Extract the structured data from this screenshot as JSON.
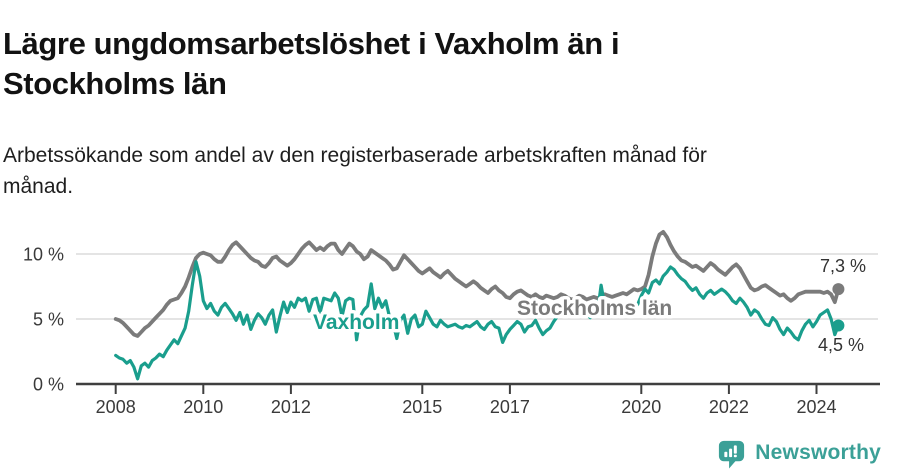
{
  "header": {
    "title_line1": "Lägre ungdomsarbetslöshet i Vaxholm än i",
    "title_line2": "Stockholms län",
    "subtitle_line1": "Arbetssökande som andel av den registerbaserade arbetskraften månad för",
    "subtitle_line2": "månad."
  },
  "footer": {
    "brand": "Newsworthy",
    "logo_icon": "speech-bubble-bar-chart-icon"
  },
  "colors": {
    "vaxholm": "#1a9e8d",
    "stockholms_lan": "#7b7b7b",
    "brand_teal": "#3ba097",
    "title_text": "#121212",
    "axis_text": "#3a3a3a",
    "end_label_text": "#333333",
    "grid": "#dcdcdc",
    "axis_line": "#3f3f3f",
    "background": "#ffffff"
  },
  "chart_data": {
    "type": "line",
    "title": "Lägre ungdomsarbetslöshet i Vaxholm än i Stockholms län",
    "subtitle": "Arbetssökande som andel av den registerbaserade arbetskraften månad för månad.",
    "x_unit": "month",
    "x_start": "2008-01",
    "x_end": "2024-07",
    "grid": "horizontal",
    "legend": "inline-labels",
    "ylim": [
      0,
      12.5
    ],
    "y_ticks": [
      {
        "value": 0,
        "label": "0 %"
      },
      {
        "value": 5,
        "label": "5 %"
      },
      {
        "value": 10,
        "label": "10 %"
      }
    ],
    "x_ticks": [
      {
        "year": 2008,
        "label": "2008"
      },
      {
        "year": 2010,
        "label": "2010"
      },
      {
        "year": 2012,
        "label": "2012"
      },
      {
        "year": 2015,
        "label": "2015"
      },
      {
        "year": 2017,
        "label": "2017"
      },
      {
        "year": 2020,
        "label": "2020"
      },
      {
        "year": 2022,
        "label": "2022"
      },
      {
        "year": 2024,
        "label": "2024"
      }
    ],
    "series": [
      {
        "name": "Stockholms län",
        "slug": "stockholms-lan",
        "color_key": "stockholms_lan",
        "end_label": "7,3 %",
        "end_value": 7.3,
        "values": [
          5.0,
          4.9,
          4.7,
          4.4,
          4.1,
          3.8,
          3.7,
          4.0,
          4.3,
          4.5,
          4.8,
          5.1,
          5.4,
          5.7,
          6.1,
          6.4,
          6.5,
          6.6,
          7.0,
          7.5,
          8.2,
          9.0,
          9.7,
          10.0,
          10.1,
          10.0,
          9.9,
          9.6,
          9.4,
          9.4,
          9.8,
          10.3,
          10.7,
          10.9,
          10.6,
          10.3,
          10.0,
          9.7,
          9.5,
          9.4,
          9.1,
          9.0,
          9.3,
          9.7,
          9.8,
          9.5,
          9.3,
          9.1,
          9.3,
          9.6,
          10.0,
          10.4,
          10.7,
          10.9,
          10.6,
          10.3,
          10.5,
          10.3,
          10.6,
          10.8,
          10.8,
          10.3,
          10.0,
          10.4,
          10.8,
          10.6,
          10.2,
          10.0,
          9.6,
          9.8,
          10.3,
          10.1,
          9.9,
          9.7,
          9.5,
          9.2,
          8.8,
          8.9,
          9.4,
          9.9,
          9.6,
          9.3,
          9.0,
          8.7,
          8.5,
          8.7,
          8.9,
          8.6,
          8.4,
          8.2,
          8.5,
          8.7,
          8.4,
          8.1,
          7.9,
          7.7,
          7.5,
          7.7,
          7.9,
          7.7,
          7.4,
          7.2,
          7.0,
          7.3,
          7.5,
          7.2,
          7.0,
          6.7,
          6.6,
          6.9,
          7.1,
          7.2,
          7.0,
          6.8,
          6.7,
          6.9,
          6.7,
          6.6,
          6.8,
          6.7,
          6.6,
          6.7,
          6.9,
          6.8,
          6.6,
          6.5,
          6.6,
          6.8,
          6.7,
          6.5,
          6.6,
          6.7,
          6.6,
          6.7,
          6.9,
          6.8,
          6.7,
          6.8,
          6.9,
          7.0,
          6.9,
          7.1,
          7.3,
          7.2,
          7.3,
          7.5,
          8.4,
          9.8,
          10.8,
          11.5,
          11.7,
          11.3,
          10.7,
          10.2,
          9.8,
          9.5,
          9.4,
          9.2,
          9.0,
          9.1,
          8.9,
          8.7,
          9.0,
          9.3,
          9.1,
          8.8,
          8.6,
          8.4,
          8.7,
          9.0,
          9.2,
          8.9,
          8.4,
          7.9,
          7.4,
          7.2,
          7.3,
          7.5,
          7.6,
          7.4,
          7.2,
          7.0,
          6.8,
          6.9,
          6.6,
          6.4,
          6.6,
          6.9,
          7.0,
          7.1,
          7.1,
          7.1,
          7.1,
          7.1,
          7.0,
          7.1,
          6.9,
          6.3,
          7.3
        ]
      },
      {
        "name": "Vaxholm",
        "slug": "vaxholm",
        "color_key": "vaxholm",
        "end_label": "4,5 %",
        "end_value": 4.5,
        "values": [
          2.2,
          2.0,
          1.9,
          1.6,
          1.8,
          1.3,
          0.4,
          1.4,
          1.6,
          1.3,
          1.8,
          2.0,
          2.3,
          2.1,
          2.6,
          3.0,
          3.4,
          3.1,
          3.7,
          4.3,
          5.6,
          7.6,
          9.4,
          8.3,
          6.4,
          5.8,
          6.2,
          5.6,
          5.3,
          5.9,
          6.2,
          5.8,
          5.4,
          4.9,
          5.5,
          4.6,
          5.3,
          4.2,
          4.9,
          5.4,
          5.1,
          4.6,
          5.3,
          5.7,
          4.0,
          5.2,
          6.3,
          5.5,
          6.3,
          5.9,
          6.6,
          6.4,
          6.6,
          5.6,
          6.5,
          6.6,
          5.5,
          6.6,
          6.5,
          6.4,
          7.0,
          6.6,
          5.2,
          6.4,
          6.6,
          6.5,
          3.4,
          5.2,
          5.7,
          6.0,
          7.7,
          5.8,
          6.6,
          5.9,
          6.4,
          5.2,
          4.7,
          3.5,
          4.9,
          5.3,
          3.9,
          5.0,
          5.3,
          4.4,
          4.6,
          5.6,
          5.1,
          4.6,
          4.4,
          4.9,
          4.6,
          4.4,
          4.5,
          4.6,
          4.4,
          4.3,
          4.5,
          4.4,
          4.6,
          4.8,
          4.4,
          4.2,
          4.6,
          4.8,
          4.4,
          4.3,
          3.2,
          3.8,
          4.2,
          4.5,
          4.8,
          4.6,
          4.0,
          4.4,
          4.5,
          4.9,
          4.3,
          3.8,
          4.1,
          4.3,
          4.8,
          5.2,
          5.6,
          5.4,
          5.6,
          5.5,
          5.3,
          5.5,
          5.2,
          5.4,
          5.1,
          5.3,
          5.5,
          7.6,
          6.0,
          5.4,
          5.6,
          5.3,
          5.5,
          5.7,
          5.4,
          5.6,
          5.8,
          6.1,
          6.8,
          7.3,
          7.0,
          7.8,
          8.0,
          7.7,
          8.3,
          8.6,
          9.0,
          8.8,
          8.4,
          8.1,
          7.9,
          7.5,
          7.2,
          7.4,
          6.9,
          6.6,
          7.0,
          7.2,
          6.9,
          7.1,
          7.3,
          7.1,
          6.8,
          6.4,
          6.2,
          6.6,
          6.3,
          5.9,
          5.3,
          5.7,
          5.5,
          5.0,
          4.6,
          4.5,
          5.1,
          4.8,
          4.2,
          3.8,
          4.3,
          4.0,
          3.6,
          3.4,
          4.1,
          4.6,
          4.9,
          4.4,
          4.8,
          5.3,
          5.5,
          5.7,
          5.0,
          3.8,
          4.5
        ]
      }
    ]
  }
}
